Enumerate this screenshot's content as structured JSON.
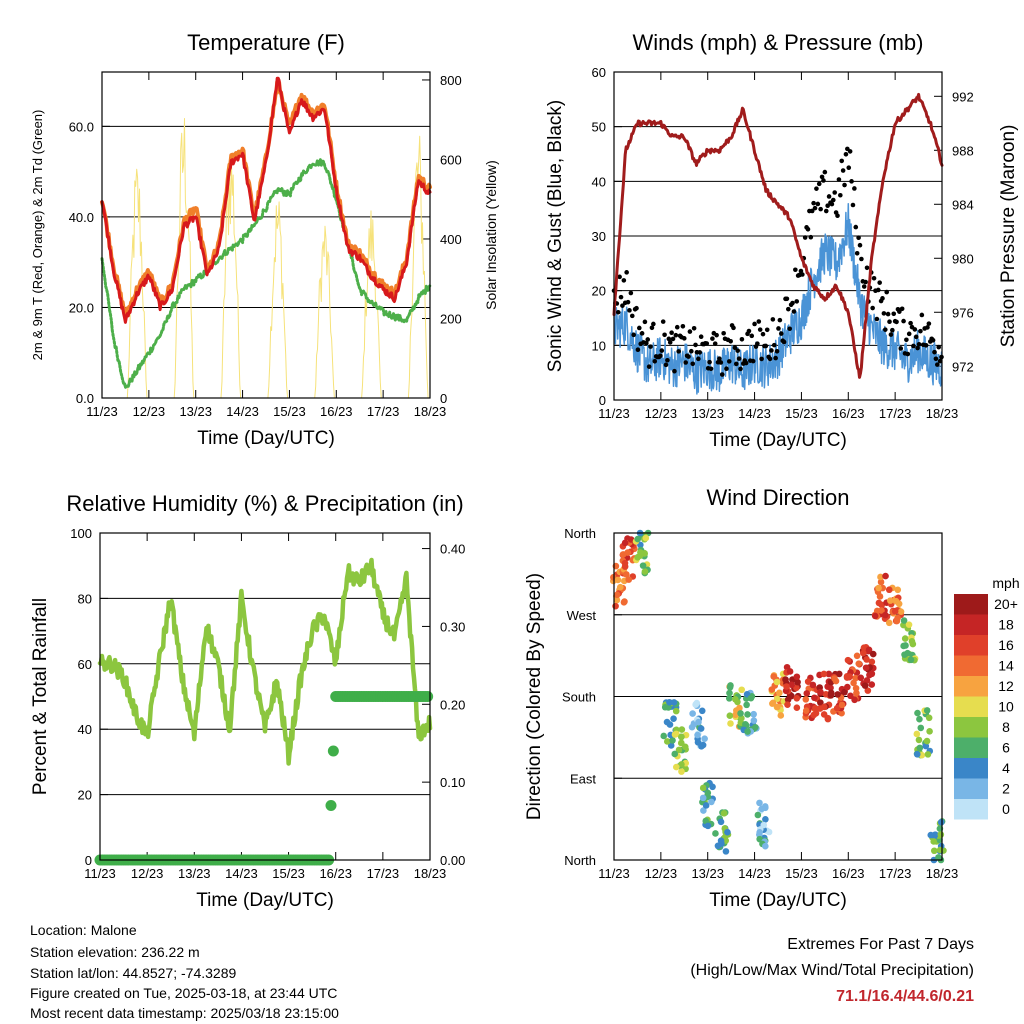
{
  "x_ticks": [
    "11/23",
    "12/23",
    "13/23",
    "14/23",
    "15/23",
    "16/23",
    "17/23",
    "18/23"
  ],
  "x_label": "Time (Day/UTC)",
  "colors": {
    "temp": "#d7191c",
    "temp9m": "#f07f2a",
    "dew": "#4daf4a",
    "solar": "#f6e27a",
    "wind": "#4a93d6",
    "gust": "#000000",
    "pressure": "#a01c1c",
    "rh": "#8cc63f",
    "precip": "#3fae49",
    "extremes": "#c1272d"
  },
  "panels": {
    "temperature": {
      "title": "Temperature (F)",
      "ylabel_left": "2m & 9m T (Red, Orange) & 2m Td (Green)",
      "ylabel_right": "Solar Insolation (Yellow)",
      "left_ticks": [
        "0.0",
        "20.0",
        "40.0",
        "60.0"
      ],
      "right_ticks": [
        "0",
        "200",
        "400",
        "600",
        "800"
      ]
    },
    "winds": {
      "title": "Winds (mph) & Pressure (mb)",
      "ylabel_left": "Sonic Wind & Gust (Blue, Black)",
      "ylabel_right": "Station Pressure (Maroon)",
      "left_ticks": [
        "0",
        "10",
        "20",
        "30",
        "40",
        "50",
        "60"
      ],
      "right_ticks": [
        "972",
        "976",
        "980",
        "984",
        "988",
        "992"
      ]
    },
    "humidity": {
      "title": "Relative Humidity (%) & Precipitation (in)",
      "ylabel_left": "Percent & Total Rainfall",
      "left_ticks": [
        "0",
        "20",
        "40",
        "60",
        "80",
        "100"
      ],
      "right_ticks": [
        "0.00",
        "0.10",
        "0.20",
        "0.30",
        "0.40"
      ]
    },
    "direction": {
      "title": "Wind Direction",
      "ylabel_left": "Direction (Colored By Speed)",
      "dir_labels": [
        "North",
        "East",
        "South",
        "West",
        "North"
      ],
      "legend_title": "mph",
      "legend_labels": [
        "20+",
        "18",
        "16",
        "14",
        "12",
        "10",
        "8",
        "6",
        "4",
        "2",
        "0"
      ],
      "legend_colors": [
        "#9e1a1a",
        "#c52525",
        "#e0402a",
        "#f06a32",
        "#f7a340",
        "#e6dd4f",
        "#8cc63f",
        "#4daf6a",
        "#3a86c8",
        "#79b6e6",
        "#bfe3f7"
      ]
    }
  },
  "chart_data": [
    {
      "type": "line",
      "title": "Temperature (F)",
      "xlabel": "Time (Day/UTC)",
      "ylabel": "2m & 9m T (Red, Orange) & 2m Td (Green)",
      "ylim": [
        0,
        72
      ],
      "y2lim": [
        0,
        820
      ],
      "x": [
        11.0,
        11.25,
        11.5,
        11.75,
        12.0,
        12.25,
        12.5,
        12.75,
        13.0,
        13.25,
        13.5,
        13.75,
        14.0,
        14.25,
        14.5,
        14.75,
        15.0,
        15.25,
        15.5,
        15.75,
        16.0,
        16.25,
        16.5,
        16.75,
        17.0,
        17.25,
        17.5,
        17.75,
        18.0
      ],
      "series": [
        {
          "name": "2m T",
          "axis": "left",
          "values": [
            44,
            28,
            17,
            23,
            27,
            20,
            24,
            38,
            40,
            27,
            33,
            52,
            54,
            39,
            52,
            71,
            58,
            66,
            62,
            64,
            46,
            33,
            31,
            27,
            24,
            22,
            30,
            48,
            45
          ]
        },
        {
          "name": "9m T",
          "axis": "left",
          "values": [
            44,
            29,
            18,
            24,
            28,
            21,
            25,
            39,
            42,
            28,
            34,
            53,
            55,
            40,
            53,
            70,
            60,
            67,
            63,
            65,
            47,
            34,
            32,
            28,
            25,
            23,
            31,
            49,
            46
          ]
        },
        {
          "name": "2m Td",
          "axis": "left",
          "values": [
            31,
            13,
            2,
            6,
            10,
            14,
            20,
            24,
            26,
            28,
            31,
            33,
            35,
            38,
            42,
            46,
            45,
            49,
            52,
            52,
            44,
            34,
            24,
            21,
            19,
            18,
            17,
            22,
            25
          ]
        },
        {
          "name": "Solar Insolation",
          "axis": "right",
          "values": [
            0,
            250,
            620,
            0,
            0,
            240,
            760,
            0,
            0,
            280,
            690,
            0,
            0,
            160,
            540,
            0,
            0,
            120,
            470,
            0,
            0,
            160,
            500,
            0,
            0,
            270,
            700,
            0,
            0
          ]
        }
      ]
    },
    {
      "type": "line",
      "title": "Winds (mph) & Pressure (mb)",
      "xlabel": "Time (Day/UTC)",
      "ylabel": "Sonic Wind & Gust (Blue, Black)",
      "ylim": [
        0,
        60
      ],
      "y2lim": [
        969.5,
        993.8
      ],
      "x": [
        11.0,
        11.25,
        11.5,
        11.75,
        12.0,
        12.25,
        12.5,
        12.75,
        13.0,
        13.25,
        13.5,
        13.75,
        14.0,
        14.25,
        14.5,
        14.75,
        15.0,
        15.25,
        15.5,
        15.75,
        16.0,
        16.25,
        16.5,
        16.75,
        17.0,
        17.25,
        17.5,
        17.75,
        18.0
      ],
      "series": [
        {
          "name": "Sonic Wind",
          "axis": "left",
          "values": [
            13,
            14,
            9,
            6,
            8,
            6,
            7,
            5,
            6,
            5,
            7,
            5,
            7,
            6,
            8,
            12,
            15,
            22,
            27,
            25,
            32,
            18,
            13,
            10,
            9,
            7,
            9,
            7,
            6
          ]
        },
        {
          "name": "Gust",
          "axis": "left",
          "values": [
            18,
            21,
            13,
            10,
            11,
            9,
            10,
            9,
            9,
            8,
            10,
            9,
            11,
            10,
            12,
            17,
            25,
            34,
            38,
            36,
            45,
            26,
            20,
            17,
            14,
            12,
            13,
            11,
            9
          ]
        },
        {
          "name": "Station Pressure",
          "axis": "right",
          "values": [
            976,
            988,
            990,
            990,
            990,
            989,
            989,
            987,
            988,
            988,
            989,
            991,
            988,
            985,
            984,
            983,
            980,
            978,
            977,
            978,
            976,
            971,
            980,
            986,
            990,
            991,
            992,
            990,
            987
          ]
        }
      ]
    },
    {
      "type": "line",
      "title": "Relative Humidity (%) & Precipitation (in)",
      "xlabel": "Time (Day/UTC)",
      "ylabel": "Percent & Total Rainfall",
      "ylim": [
        0,
        100
      ],
      "y2lim": [
        0,
        0.42
      ],
      "x": [
        11.0,
        11.25,
        11.5,
        11.75,
        12.0,
        12.25,
        12.5,
        12.75,
        13.0,
        13.25,
        13.5,
        13.75,
        14.0,
        14.25,
        14.5,
        14.75,
        15.0,
        15.25,
        15.5,
        15.75,
        16.0,
        16.25,
        16.5,
        16.75,
        17.0,
        17.25,
        17.5,
        17.75,
        18.0
      ],
      "series": [
        {
          "name": "Relative Humidity",
          "axis": "left",
          "values": [
            60,
            60,
            56,
            45,
            38,
            60,
            80,
            55,
            38,
            72,
            60,
            40,
            80,
            58,
            40,
            55,
            32,
            55,
            70,
            75,
            60,
            88,
            85,
            90,
            75,
            68,
            86,
            38,
            42
          ]
        },
        {
          "name": "Total Precipitation",
          "axis": "right",
          "values": [
            0,
            0,
            0,
            0,
            0,
            0,
            0,
            0,
            0,
            0,
            0,
            0,
            0,
            0,
            0,
            0,
            0,
            0,
            0,
            0,
            0.21,
            0.21,
            0.21,
            0.21,
            0.21,
            0.21,
            0.21,
            0.21,
            0.21
          ]
        }
      ]
    },
    {
      "type": "scatter",
      "title": "Wind Direction",
      "xlabel": "Time (Day/UTC)",
      "ylabel": "Direction (Colored By Speed)",
      "ylim": [
        0,
        360
      ],
      "x": [
        11.1,
        11.3,
        11.6,
        12.2,
        12.4,
        12.8,
        13.0,
        13.3,
        13.6,
        13.9,
        14.2,
        14.5,
        14.8,
        15.2,
        15.5,
        15.8,
        16.1,
        16.4,
        16.7,
        17.0,
        17.3,
        17.6,
        17.9
      ],
      "values": [
        300,
        330,
        340,
        150,
        120,
        150,
        60,
        30,
        170,
        160,
        40,
        180,
        190,
        180,
        180,
        180,
        200,
        210,
        290,
        280,
        240,
        140,
        20
      ],
      "speeds": [
        14,
        16,
        7,
        6,
        8,
        3,
        5,
        6,
        9,
        4,
        3,
        12,
        18,
        16,
        18,
        17,
        16,
        18,
        15,
        14,
        8,
        7,
        6
      ]
    }
  ],
  "footer": {
    "location": "Location: Malone",
    "elevation": "Station elevation: 236.22 m",
    "latlon": "Station lat/lon: 44.8527; -74.3289",
    "created": "Figure created on Tue, 2025-03-18, at 23:44 UTC",
    "recent": "Most recent data timestamp: 2025/03/18 23:15:00",
    "extremes_title": "Extremes For Past 7 Days",
    "extremes_sub": "(High/Low/Max Wind/Total Precipitation)",
    "extremes_values": "71.1/16.4/44.6/0.21"
  }
}
